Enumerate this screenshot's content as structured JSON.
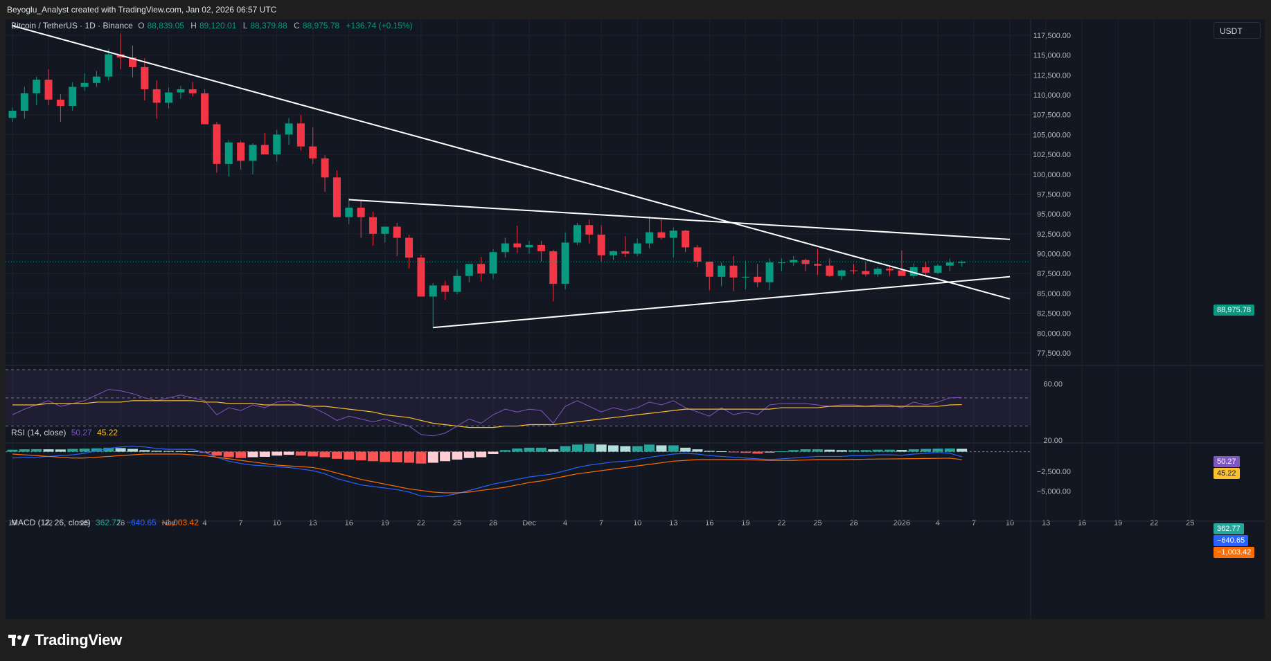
{
  "header": {
    "text": "Beyoglu_Analyst created with TradingView.com, Jan 02, 2026 06:57 UTC"
  },
  "symbol": {
    "name": "Bitcoin / TetherUS · 1D · Binance",
    "open_label": "O",
    "open": "88,839.05",
    "high_label": "H",
    "high": "89,120.01",
    "low_label": "L",
    "low": "88,379.88",
    "close_label": "C",
    "close": "88,975.78",
    "change": "+136.74 (+0.15%)"
  },
  "currency": "USDT",
  "colors": {
    "up": "#089981",
    "down": "#f23645",
    "bg": "#131722",
    "grid": "#1e222d",
    "text": "#b2b5be",
    "rsi": "#7e57c2",
    "rsi_ma": "#fbc02d",
    "macd": "#2962ff",
    "signal": "#ff6d00"
  },
  "chart_data": [
    {
      "type": "candlestick",
      "x_tick_labels": [
        "19",
        "22",
        "25",
        "28",
        "Nov",
        "4",
        "7",
        "10",
        "13",
        "16",
        "19",
        "22",
        "25",
        "28",
        "Dec",
        "4",
        "7",
        "10",
        "13",
        "16",
        "19",
        "22",
        "25",
        "28",
        "2026",
        "4",
        "7",
        "10",
        "13",
        "16",
        "19",
        "22",
        "25"
      ],
      "x_tick_index": [
        0,
        3,
        6,
        9,
        13,
        16,
        19,
        22,
        25,
        28,
        31,
        34,
        37,
        40,
        43,
        46,
        49,
        52,
        55,
        58,
        61,
        64,
        67,
        70,
        74,
        77,
        80,
        83,
        86,
        89,
        92,
        95,
        98
      ],
      "y_tick_labels": [
        "117,500.00",
        "115,000.00",
        "112,500.00",
        "110,000.00",
        "107,500.00",
        "105,000.00",
        "102,500.00",
        "100,000.00",
        "97,500.00",
        "95,000.00",
        "92,500.00",
        "90,000.00",
        "87,500.00",
        "85,000.00",
        "82,500.00",
        "80,000.00",
        "77,500.00"
      ],
      "y_ticks": [
        117500,
        115000,
        112500,
        110000,
        107500,
        105000,
        102500,
        100000,
        97500,
        95000,
        92500,
        90000,
        87500,
        85000,
        82500,
        80000,
        77500
      ],
      "ylim": [
        76800,
        119500
      ],
      "last_price_label": "88,975.78",
      "last_price": 88975.78,
      "candles": [
        [
          107100,
          108400,
          106600,
          108000
        ],
        [
          108000,
          111000,
          107000,
          110200
        ],
        [
          110200,
          112300,
          108700,
          111900
        ],
        [
          111900,
          113200,
          108700,
          109400
        ],
        [
          109400,
          110100,
          106600,
          108600
        ],
        [
          108600,
          111600,
          108000,
          111000
        ],
        [
          111000,
          112700,
          110500,
          111500
        ],
        [
          111500,
          113000,
          111000,
          112300
        ],
        [
          112300,
          115800,
          111800,
          115100
        ],
        [
          115100,
          117700,
          113200,
          114700
        ],
        [
          114700,
          116200,
          112200,
          113500
        ],
        [
          113500,
          114600,
          109300,
          110700
        ],
        [
          110700,
          111800,
          107000,
          109000
        ],
        [
          109000,
          110900,
          108300,
          110300
        ],
        [
          110300,
          111100,
          109500,
          110700
        ],
        [
          110700,
          111600,
          109800,
          110200
        ],
        [
          110200,
          110700,
          106500,
          106300
        ],
        [
          106300,
          106600,
          100200,
          101300
        ],
        [
          101300,
          104300,
          99700,
          104000
        ],
        [
          104000,
          104200,
          100600,
          101700
        ],
        [
          101700,
          103900,
          100000,
          103700
        ],
        [
          103700,
          105200,
          102500,
          102500
        ],
        [
          102500,
          105600,
          101600,
          105000
        ],
        [
          105000,
          107100,
          103700,
          106400
        ],
        [
          106400,
          107500,
          103000,
          103500
        ],
        [
          103500,
          105900,
          101300,
          102000
        ],
        [
          102000,
          102400,
          97800,
          99600
        ],
        [
          99600,
          100500,
          94800,
          94600
        ],
        [
          94600,
          97000,
          93700,
          95800
        ],
        [
          95800,
          96700,
          92000,
          94600
        ],
        [
          94600,
          95300,
          91000,
          92500
        ],
        [
          92500,
          93300,
          91400,
          93400
        ],
        [
          93400,
          93900,
          89700,
          92000
        ],
        [
          92000,
          92400,
          88100,
          89500
        ],
        [
          89500,
          89900,
          84700,
          84600
        ],
        [
          84600,
          86300,
          80600,
          86000
        ],
        [
          86000,
          86600,
          84200,
          85200
        ],
        [
          85200,
          88000,
          84900,
          87200
        ],
        [
          87200,
          88700,
          86400,
          88700
        ],
        [
          88700,
          89600,
          86500,
          87500
        ],
        [
          87500,
          90600,
          86800,
          90200
        ],
        [
          90200,
          92000,
          89500,
          91300
        ],
        [
          91300,
          93500,
          90100,
          90800
        ],
        [
          90800,
          91600,
          90000,
          91100
        ],
        [
          91100,
          91600,
          89000,
          90300
        ],
        [
          90300,
          90500,
          84000,
          86200
        ],
        [
          86200,
          92700,
          85500,
          91400
        ],
        [
          91400,
          93900,
          91100,
          93600
        ],
        [
          93600,
          94300,
          91300,
          92400
        ],
        [
          92400,
          93600,
          89000,
          89800
        ],
        [
          89800,
          90400,
          89200,
          90300
        ],
        [
          90300,
          92200,
          89600,
          90000
        ],
        [
          90000,
          91900,
          89700,
          91300
        ],
        [
          91300,
          94700,
          90700,
          92700
        ],
        [
          92700,
          94300,
          91800,
          92000
        ],
        [
          92000,
          93300,
          89500,
          92900
        ],
        [
          92900,
          93000,
          90200,
          90800
        ],
        [
          90800,
          91100,
          88300,
          89000
        ],
        [
          89000,
          89000,
          85400,
          87100
        ],
        [
          87100,
          88900,
          85900,
          88500
        ],
        [
          88500,
          89700,
          85300,
          87000
        ],
        [
          87000,
          89100,
          85500,
          87100
        ],
        [
          87100,
          88700,
          85800,
          86400
        ],
        [
          86400,
          89400,
          85400,
          88900
        ],
        [
          88900,
          89400,
          87800,
          88900
        ],
        [
          88900,
          89700,
          88500,
          89200
        ],
        [
          89200,
          89400,
          87800,
          88700
        ],
        [
          88700,
          90600,
          87300,
          88500
        ],
        [
          88500,
          89400,
          87100,
          87200
        ],
        [
          87200,
          88000,
          86700,
          87900
        ],
        [
          87900,
          88700,
          87400,
          87800
        ],
        [
          87800,
          89000,
          87200,
          87400
        ],
        [
          87400,
          88300,
          87100,
          88100
        ],
        [
          88100,
          88400,
          87200,
          87900
        ],
        [
          87900,
          90400,
          87300,
          87200
        ],
        [
          87200,
          88800,
          86900,
          88300
        ],
        [
          88300,
          89000,
          87100,
          87600
        ],
        [
          87600,
          88700,
          87400,
          88500
        ],
        [
          88500,
          89400,
          87800,
          88900
        ],
        [
          88839.05,
          89120.01,
          88379.88,
          88975.78
        ]
      ],
      "trendlines": [
        {
          "name": "descending-resistance",
          "points": [
            [
              0,
              118700
            ],
            [
              83,
              84300
            ]
          ]
        },
        {
          "name": "triangle-upper",
          "points": [
            [
              28,
              96800
            ],
            [
              83,
              91800
            ]
          ]
        },
        {
          "name": "triangle-lower",
          "points": [
            [
              35,
              80700
            ],
            [
              83,
              87100
            ]
          ]
        }
      ]
    },
    {
      "type": "line",
      "name": "RSI",
      "title": "RSI (14, close)",
      "values_label": [
        "50.27",
        "45.22"
      ],
      "y_tick_labels": [
        "60.00",
        "20.00"
      ],
      "y_ticks": [
        60,
        20
      ],
      "ylim": [
        18,
        72
      ],
      "bands": [
        70,
        50,
        30
      ],
      "series": [
        {
          "name": "RSI",
          "values": [
            38,
            42,
            45,
            48,
            44,
            46,
            48,
            52,
            56,
            55,
            53,
            50,
            48,
            50,
            52,
            50,
            48,
            38,
            43,
            41,
            45,
            43,
            47,
            48,
            45,
            43,
            39,
            34,
            37,
            35,
            33,
            35,
            32,
            30,
            24,
            23,
            25,
            30,
            35,
            32,
            38,
            42,
            40,
            42,
            41,
            32,
            44,
            48,
            44,
            40,
            43,
            41,
            43,
            47,
            45,
            48,
            43,
            40,
            37,
            43,
            38,
            40,
            38,
            45,
            46,
            46,
            46,
            45,
            44,
            45,
            45,
            44,
            45,
            45,
            43,
            47,
            45,
            47,
            50,
            50.27
          ]
        },
        {
          "name": "RSI-based MA",
          "values": [
            45,
            45,
            45,
            46,
            46,
            46,
            46,
            47,
            47,
            47,
            48,
            48,
            48,
            48,
            48,
            48,
            47,
            47,
            46,
            46,
            46,
            45,
            45,
            45,
            45,
            44,
            44,
            43,
            42,
            41,
            40,
            38,
            37,
            36,
            34,
            32,
            31,
            30,
            29,
            29,
            29,
            30,
            30,
            31,
            31,
            31,
            32,
            33,
            34,
            35,
            36,
            37,
            38,
            39,
            40,
            41,
            42,
            42,
            42,
            42,
            42,
            42,
            42,
            42,
            43,
            43,
            43,
            43,
            44,
            44,
            44,
            44,
            44,
            44,
            44,
            44,
            44,
            44,
            45,
            45.22
          ]
        }
      ]
    },
    {
      "type": "bar+line",
      "name": "MACD",
      "title": "MACD (12, 26, close)",
      "values_label": [
        "362.77",
        "−640.65",
        "−1,003.42"
      ],
      "y_tick_labels": [
        "−2,500.00",
        "−5,000.00"
      ],
      "y_ticks": [
        -2500,
        -5000
      ],
      "ylim": [
        -6600,
        1100
      ],
      "histogram": [
        250,
        300,
        320,
        300,
        280,
        350,
        380,
        420,
        500,
        450,
        350,
        200,
        120,
        90,
        70,
        60,
        -150,
        -500,
        -700,
        -800,
        -700,
        -650,
        -500,
        -400,
        -500,
        -600,
        -700,
        -900,
        -1000,
        -1100,
        -1200,
        -1300,
        -1350,
        -1400,
        -1500,
        -1400,
        -1200,
        -1000,
        -800,
        -700,
        -300,
        200,
        400,
        500,
        500,
        300,
        700,
        900,
        1000,
        900,
        800,
        700,
        700,
        900,
        800,
        800,
        500,
        300,
        100,
        50,
        -50,
        -150,
        -250,
        -100,
        50,
        200,
        300,
        300,
        250,
        200,
        200,
        200,
        250,
        250,
        220,
        300,
        350,
        380,
        400,
        362.77
      ],
      "series": [
        {
          "name": "MACD",
          "values": [
            -800,
            -700,
            -700,
            -600,
            -500,
            -400,
            -200,
            100,
            400,
            600,
            700,
            600,
            400,
            300,
            300,
            300,
            -100,
            -700,
            -1200,
            -1500,
            -1700,
            -1800,
            -1900,
            -2000,
            -2200,
            -2400,
            -2800,
            -3400,
            -3800,
            -4200,
            -4400,
            -4600,
            -4800,
            -5100,
            -5600,
            -5700,
            -5600,
            -5300,
            -4900,
            -4500,
            -4100,
            -3800,
            -3500,
            -3200,
            -3000,
            -2800,
            -2400,
            -2000,
            -1700,
            -1500,
            -1300,
            -1200,
            -1000,
            -700,
            -500,
            -300,
            -200,
            -300,
            -500,
            -600,
            -700,
            -800,
            -900,
            -1000,
            -900,
            -800,
            -700,
            -600,
            -600,
            -600,
            -500,
            -500,
            -400,
            -400,
            -450,
            -300,
            -200,
            -100,
            -200,
            -640.65
          ]
        },
        {
          "name": "Signal",
          "values": [
            -300,
            -400,
            -500,
            -600,
            -700,
            -800,
            -800,
            -700,
            -600,
            -500,
            -400,
            -300,
            -300,
            -300,
            -300,
            -400,
            -500,
            -700,
            -900,
            -1100,
            -1300,
            -1500,
            -1700,
            -1800,
            -1900,
            -2000,
            -2300,
            -2700,
            -3100,
            -3500,
            -3800,
            -4100,
            -4400,
            -4700,
            -4900,
            -5100,
            -5200,
            -5200,
            -5100,
            -4900,
            -4700,
            -4500,
            -4200,
            -3900,
            -3700,
            -3400,
            -3100,
            -2800,
            -2600,
            -2400,
            -2200,
            -2000,
            -1800,
            -1600,
            -1400,
            -1200,
            -1100,
            -1000,
            -1000,
            -1000,
            -1000,
            -1000,
            -1050,
            -1100,
            -1100,
            -1100,
            -1050,
            -1000,
            -1000,
            -1000,
            -980,
            -950,
            -930,
            -920,
            -900,
            -880,
            -860,
            -840,
            -820,
            -1003.42
          ]
        }
      ]
    }
  ],
  "brand": {
    "name": "TradingView"
  }
}
